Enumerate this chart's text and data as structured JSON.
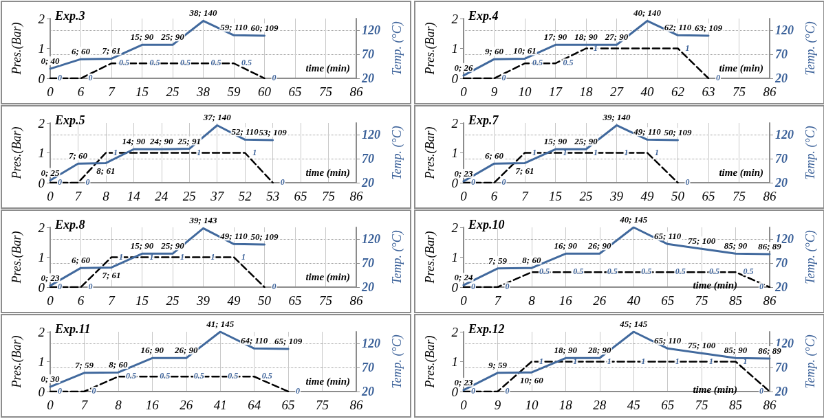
{
  "chart_data": [
    {
      "type": "line",
      "title": "Exp.3",
      "xlabel": "time (min)",
      "ylabel": "Pres.(Bar)",
      "y2label": "Temp. (°C)",
      "categories": [
        "0",
        "6",
        "7",
        "15",
        "25",
        "38",
        "59",
        "60",
        "65",
        "75",
        "86"
      ],
      "ylim": [
        0,
        2
      ],
      "yticks": [
        0,
        1,
        2
      ],
      "y2lim": [
        20,
        145
      ],
      "y2ticks": [
        20,
        70,
        120
      ],
      "grid": true,
      "marker": "none",
      "series": [
        {
          "color": "#000000",
          "line_style": "dashed",
          "values": [
            0,
            0,
            0.5,
            0.5,
            0.5,
            0.5,
            0.5,
            0,
            null,
            null,
            null
          ],
          "value_labels": [
            "0",
            "0",
            "0.5",
            "0.5",
            "0.5",
            "0.5",
            "0.5",
            "0",
            null,
            null,
            null
          ]
        },
        {
          "color": "#41699d",
          "line_style": "solid",
          "axis": "y2",
          "values": [
            40,
            60,
            61,
            90,
            90,
            140,
            110,
            109,
            null,
            null,
            null
          ],
          "value_labels": [
            "0; 40",
            "6; 60",
            "7; 61",
            "15; 90",
            "25; 90",
            "38; 140",
            "59; 110",
            "60; 109",
            null,
            null,
            null
          ]
        }
      ]
    },
    {
      "type": "line",
      "title": "Exp.4",
      "xlabel": "time (min)",
      "ylabel": "Pres.(Bar)",
      "y2label": "Temp. (°C)",
      "categories": [
        "0",
        "9",
        "10",
        "17",
        "18",
        "27",
        "40",
        "62",
        "63",
        "75",
        "86"
      ],
      "ylim": [
        0,
        2
      ],
      "yticks": [
        0,
        1,
        2
      ],
      "y2lim": [
        20,
        145
      ],
      "y2ticks": [
        20,
        70,
        120
      ],
      "grid": true,
      "marker": "none",
      "series": [
        {
          "color": "#000000",
          "line_style": "dashed",
          "values": [
            0,
            0,
            0.5,
            0.5,
            1,
            1,
            1,
            1,
            0,
            null,
            null
          ],
          "value_labels": [
            null,
            "0",
            "0.5",
            "0.5",
            "1",
            null,
            null,
            "1",
            "0",
            null,
            null
          ]
        },
        {
          "color": "#41699d",
          "line_style": "solid",
          "axis": "y2",
          "values": [
            26,
            60,
            61,
            90,
            90,
            90,
            140,
            110,
            109,
            null,
            null
          ],
          "value_labels": [
            "0; 26",
            "9; 60",
            "10; 61",
            "17; 90",
            "18; 90",
            "27; 90",
            "40; 140",
            "62; 110",
            "63; 109",
            null,
            null
          ]
        }
      ]
    },
    {
      "type": "line",
      "title": "Exp.5",
      "xlabel": "time (min)",
      "ylabel": "Pres.(Bar)",
      "y2label": "Temp. (°C)",
      "categories": [
        "0",
        "7",
        "8",
        "14",
        "24",
        "25",
        "37",
        "52",
        "53",
        "65",
        "75",
        "86"
      ],
      "ylim": [
        0,
        2
      ],
      "yticks": [
        0,
        1,
        2
      ],
      "y2lim": [
        20,
        145
      ],
      "y2ticks": [
        20,
        70,
        120
      ],
      "grid": true,
      "marker": "none",
      "series": [
        {
          "color": "#000000",
          "line_style": "dashed",
          "values": [
            0,
            0,
            1,
            1,
            1,
            1,
            1,
            1,
            0,
            null,
            null,
            null
          ],
          "value_labels": [
            "0",
            "0",
            "1",
            null,
            null,
            "1",
            null,
            "1",
            "0",
            null,
            null,
            null
          ]
        },
        {
          "color": "#41699d",
          "line_style": "solid",
          "axis": "y2",
          "values": [
            25,
            60,
            61,
            90,
            90,
            91,
            140,
            110,
            109,
            null,
            null,
            null
          ],
          "value_labels": [
            "0; 25",
            "7; 60",
            "8; 61",
            "14; 90",
            "24; 90",
            "25; 91",
            "37; 140",
            "52; 110",
            "53; 109",
            null,
            null,
            null
          ]
        }
      ]
    },
    {
      "type": "line",
      "title": "Exp.7",
      "xlabel": "time (min)",
      "ylabel": "Pres.(Bar)",
      "y2label": "Temp. (°C)",
      "categories": [
        "0",
        "6",
        "7",
        "15",
        "25",
        "39",
        "49",
        "50",
        "65",
        "75",
        "86"
      ],
      "ylim": [
        0,
        2
      ],
      "yticks": [
        0,
        1,
        2
      ],
      "y2lim": [
        20,
        145
      ],
      "y2ticks": [
        20,
        70,
        120
      ],
      "grid": true,
      "marker": "none",
      "series": [
        {
          "color": "#000000",
          "line_style": "dashed",
          "values": [
            0,
            0,
            1,
            1,
            1,
            1,
            1,
            0,
            null,
            null,
            null
          ],
          "value_labels": [
            "0",
            "0",
            "1",
            "1",
            "1",
            "1",
            "1",
            "0",
            null,
            null,
            null
          ]
        },
        {
          "color": "#41699d",
          "line_style": "solid",
          "axis": "y2",
          "values": [
            23,
            60,
            61,
            90,
            90,
            140,
            110,
            109,
            null,
            null,
            null
          ],
          "value_labels": [
            "0; 23",
            "6; 60",
            "7; 61",
            "15; 90",
            "25; 90",
            "39; 140",
            "49; 110",
            "50; 109",
            null,
            null,
            null
          ]
        }
      ]
    },
    {
      "type": "line",
      "title": "Exp.8",
      "xlabel": "time (min)",
      "ylabel": "Pres.(Bar)",
      "y2label": "Temp. (°C)",
      "categories": [
        "0",
        "6",
        "7",
        "15",
        "25",
        "39",
        "49",
        "50",
        "65",
        "75",
        "86"
      ],
      "ylim": [
        0,
        2
      ],
      "yticks": [
        0,
        1,
        2
      ],
      "y2lim": [
        20,
        145
      ],
      "y2ticks": [
        20,
        70,
        120
      ],
      "grid": true,
      "marker": "none",
      "series": [
        {
          "color": "#000000",
          "line_style": "dashed",
          "values": [
            0,
            0,
            1,
            1,
            1,
            1,
            1,
            0,
            null,
            null,
            null
          ],
          "value_labels": [
            "0",
            "0",
            "1",
            "1",
            "1",
            "1",
            "1",
            "0",
            null,
            null,
            null
          ]
        },
        {
          "color": "#41699d",
          "line_style": "solid",
          "axis": "y2",
          "values": [
            23,
            60,
            61,
            90,
            90,
            143,
            110,
            109,
            null,
            null,
            null
          ],
          "value_labels": [
            "0; 23",
            "6; 60",
            "7; 61",
            "15; 90",
            "25; 90",
            "39; 143",
            "49; 110",
            "50; 109",
            null,
            null,
            null
          ]
        }
      ]
    },
    {
      "type": "line",
      "title": "Exp.10",
      "xlabel": "time (min)",
      "ylabel": "Pres.(Bar)",
      "y2label": "Temp. (°C)",
      "categories": [
        "0",
        "7",
        "8",
        "16",
        "26",
        "40",
        "65",
        "75",
        "85",
        "86"
      ],
      "ylim": [
        0,
        2
      ],
      "yticks": [
        0,
        1,
        2
      ],
      "y2lim": [
        20,
        145
      ],
      "y2ticks": [
        20,
        70,
        120
      ],
      "grid": true,
      "marker": "none",
      "series": [
        {
          "color": "#000000",
          "line_style": "dashed",
          "values": [
            0,
            0,
            0.5,
            0.5,
            0.5,
            0.5,
            0.5,
            0.5,
            0.5,
            0
          ],
          "value_labels": [
            "0",
            "0",
            "0.5",
            "0.5",
            "0.5",
            "0.5",
            "0.5",
            "0.5",
            "0.5",
            "0"
          ]
        },
        {
          "color": "#41699d",
          "line_style": "solid",
          "axis": "y2",
          "values": [
            24,
            59,
            60,
            90,
            90,
            145,
            110,
            100,
            90,
            89
          ],
          "value_labels": [
            "0; 24",
            "7; 59",
            "8; 60",
            "16; 90",
            "26; 90",
            "40; 145",
            "65; 110",
            "75; 100",
            "85; 90",
            "86; 89"
          ]
        }
      ]
    },
    {
      "type": "line",
      "title": "Exp.11",
      "xlabel": "time (min)",
      "ylabel": "Pres.(Bar)",
      "y2label": "Temp. (°C)",
      "categories": [
        "0",
        "7",
        "8",
        "16",
        "26",
        "41",
        "64",
        "65",
        "75",
        "86"
      ],
      "ylim": [
        0,
        2
      ],
      "yticks": [
        0,
        1,
        2
      ],
      "y2lim": [
        20,
        145
      ],
      "y2ticks": [
        20,
        70,
        120
      ],
      "grid": true,
      "marker": "none",
      "series": [
        {
          "color": "#000000",
          "line_style": "dashed",
          "values": [
            0,
            0,
            0.5,
            0.5,
            0.5,
            0.5,
            0.5,
            0,
            null,
            null
          ],
          "value_labels": [
            "0",
            "0",
            "0.5",
            "0.5",
            "0.5",
            "0.5",
            "0.5",
            "0",
            null,
            null
          ]
        },
        {
          "color": "#41699d",
          "line_style": "solid",
          "axis": "y2",
          "values": [
            30,
            59,
            60,
            90,
            90,
            145,
            110,
            109,
            null,
            null
          ],
          "value_labels": [
            "0; 30",
            "7; 59",
            "8; 60",
            "16; 90",
            "26; 90",
            "41; 145",
            "64; 110",
            "65; 109",
            null,
            null
          ]
        }
      ]
    },
    {
      "type": "line",
      "title": "Exp.12",
      "xlabel": "time (min)",
      "ylabel": "Pres.(Bar)",
      "y2label": "Temp. (°C)",
      "categories": [
        "0",
        "9",
        "10",
        "18",
        "28",
        "45",
        "65",
        "75",
        "85",
        "86"
      ],
      "ylim": [
        0,
        2
      ],
      "yticks": [
        0,
        1,
        2
      ],
      "y2lim": [
        20,
        145
      ],
      "y2ticks": [
        20,
        70,
        120
      ],
      "grid": true,
      "marker": "none",
      "series": [
        {
          "color": "#000000",
          "line_style": "dashed",
          "values": [
            0,
            0,
            1,
            1,
            1,
            1,
            1,
            1,
            1,
            0
          ],
          "value_labels": [
            "0",
            "0",
            "1",
            "1",
            "1",
            "1",
            "1",
            "1",
            "1",
            "0"
          ]
        },
        {
          "color": "#41699d",
          "line_style": "solid",
          "axis": "y2",
          "values": [
            23,
            59,
            60,
            90,
            90,
            145,
            110,
            100,
            90,
            89
          ],
          "value_labels": [
            "0; 23",
            "9; 59",
            "10; 60",
            "18; 90",
            "28; 90",
            "45; 145",
            "65; 110",
            "75; 100",
            "85; 90",
            "86; 89"
          ]
        }
      ]
    }
  ]
}
